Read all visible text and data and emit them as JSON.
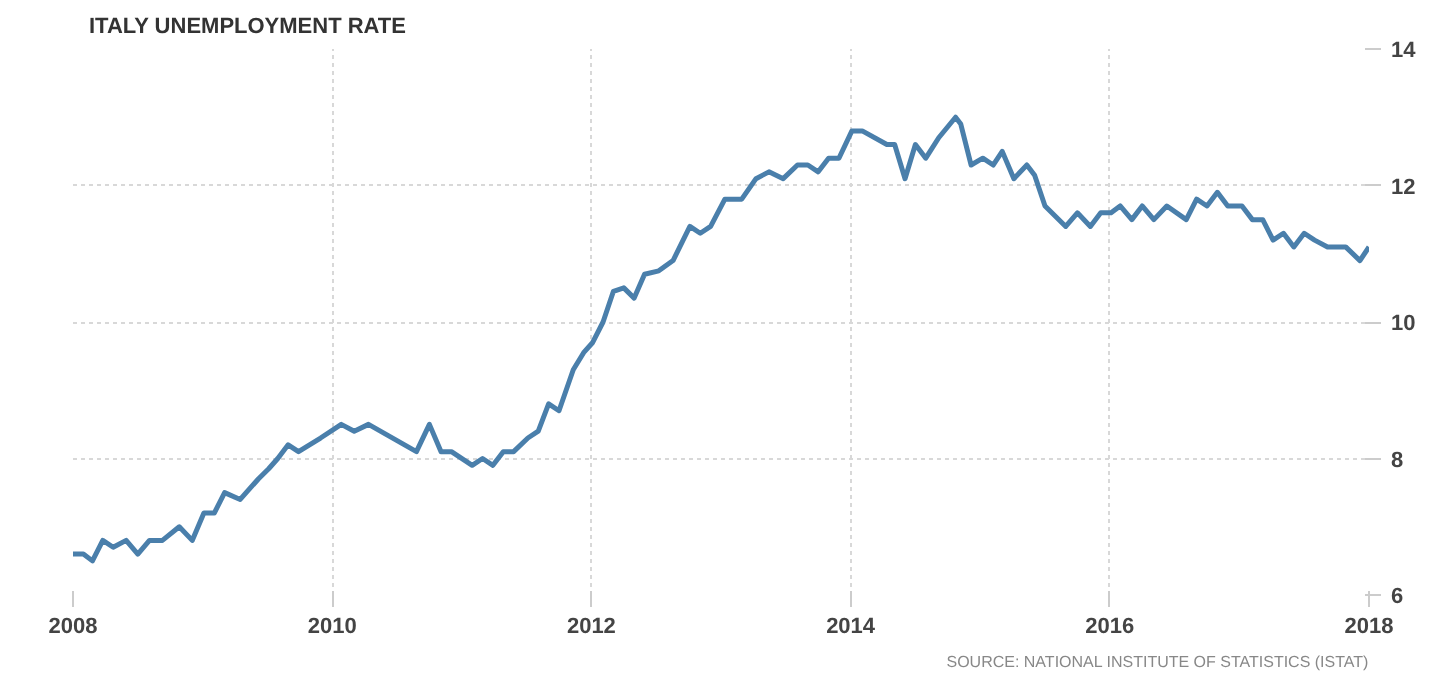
{
  "chart_data": {
    "type": "line",
    "title": "ITALY UNEMPLOYMENT RATE",
    "annotations": [
      "SOURCE: NATIONAL INSTITUTE OF STATISTICS (ISTAT)"
    ],
    "x": [
      2008.0,
      2008.08,
      2008.15,
      2008.23,
      2008.31,
      2008.41,
      2008.5,
      2008.59,
      2008.69,
      2008.82,
      2008.92,
      2009.01,
      2009.09,
      2009.17,
      2009.29,
      2009.43,
      2009.51,
      2009.58,
      2009.66,
      2009.74,
      2009.91,
      2010.07,
      2010.17,
      2010.28,
      2010.65,
      2010.75,
      2010.84,
      2010.92,
      2011.08,
      2011.16,
      2011.24,
      2011.32,
      2011.4,
      2011.51,
      2011.59,
      2011.67,
      2011.75,
      2011.86,
      2011.94,
      2012.01,
      2012.09,
      2012.17,
      2012.25,
      2012.33,
      2012.41,
      2012.52,
      2012.63,
      2012.76,
      2012.84,
      2012.92,
      2013.03,
      2013.16,
      2013.27,
      2013.37,
      2013.48,
      2013.59,
      2013.67,
      2013.75,
      2013.83,
      2013.91,
      2014.01,
      2014.09,
      2014.28,
      2014.34,
      2014.42,
      2014.5,
      2014.58,
      2014.68,
      2014.81,
      2014.85,
      2014.93,
      2015.02,
      2015.1,
      2015.17,
      2015.26,
      2015.36,
      2015.42,
      2015.5,
      2015.66,
      2015.75,
      2015.85,
      2015.93,
      2016.01,
      2016.08,
      2016.17,
      2016.25,
      2016.34,
      2016.44,
      2016.59,
      2016.67,
      2016.75,
      2016.83,
      2016.91,
      2017.02,
      2017.1,
      2017.18,
      2017.26,
      2017.34,
      2017.42,
      2017.5,
      2017.58,
      2017.68,
      2017.82,
      2017.93,
      2018.0
    ],
    "series": [
      {
        "color": "#4a7fab",
        "values": [
          6.6,
          6.6,
          6.5,
          6.8,
          6.7,
          6.8,
          6.6,
          6.8,
          6.8,
          7.0,
          6.8,
          7.2,
          7.2,
          7.5,
          7.4,
          7.7,
          7.85,
          8.0,
          8.2,
          8.1,
          8.3,
          8.5,
          8.4,
          8.5,
          8.1,
          8.5,
          8.1,
          8.1,
          7.9,
          8.0,
          7.9,
          8.1,
          8.1,
          8.3,
          8.4,
          8.8,
          8.7,
          9.3,
          9.55,
          9.7,
          10.0,
          10.45,
          10.5,
          10.35,
          10.7,
          10.75,
          10.9,
          11.4,
          11.3,
          11.4,
          11.8,
          11.8,
          12.1,
          12.2,
          12.1,
          12.3,
          12.3,
          12.2,
          12.4,
          12.4,
          12.8,
          12.8,
          12.6,
          12.6,
          12.1,
          12.6,
          12.4,
          12.7,
          13.0,
          12.9,
          12.3,
          12.4,
          12.3,
          12.5,
          12.1,
          12.3,
          12.15,
          11.7,
          11.4,
          11.6,
          11.4,
          11.6,
          11.6,
          11.7,
          11.5,
          11.7,
          11.5,
          11.7,
          11.5,
          11.8,
          11.7,
          11.9,
          11.7,
          11.7,
          11.5,
          11.5,
          11.2,
          11.3,
          11.1,
          11.3,
          11.2,
          11.1,
          11.1,
          10.9,
          11.1
        ]
      }
    ],
    "xlim": [
      2008,
      2018
    ],
    "ylim": [
      6,
      14
    ],
    "xticks": [
      2008,
      2010,
      2012,
      2014,
      2016,
      2018
    ],
    "yticks": [
      6,
      8,
      10,
      12,
      14
    ],
    "grid": true
  }
}
